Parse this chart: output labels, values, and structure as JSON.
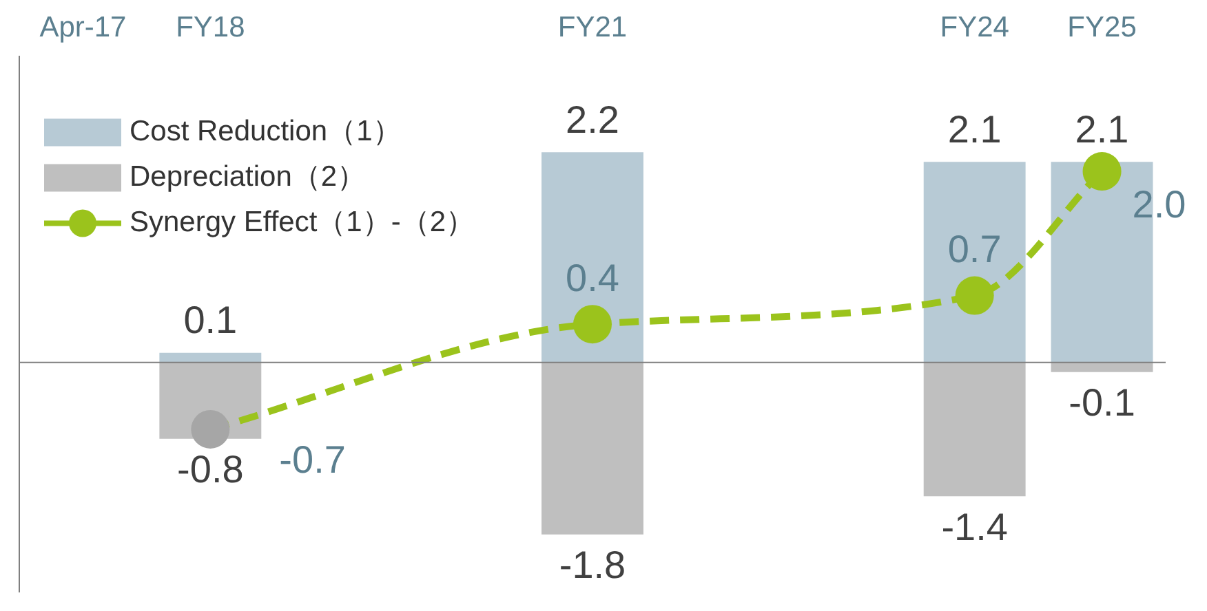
{
  "chart_data": {
    "type": "bar",
    "categories": [
      "Apr-17",
      "FY18",
      null,
      null,
      "FY21",
      null,
      null,
      "FY24",
      "FY25"
    ],
    "series": [
      {
        "name": "Cost Reduction（1）",
        "color": "#b7cad5",
        "values": [
          null,
          0.1,
          null,
          null,
          2.2,
          null,
          null,
          2.1,
          2.1
        ]
      },
      {
        "name": "Depreciation（2）",
        "color": "#bfbfbf",
        "values": [
          null,
          -0.8,
          null,
          null,
          -1.8,
          null,
          null,
          -1.4,
          -0.1
        ]
      },
      {
        "name": "Synergy Effect（1）-（2）",
        "type": "line",
        "color": "#9bc31c",
        "colors": [
          null,
          "#a6a6a6",
          null,
          null,
          "#9bc31c",
          null,
          null,
          "#9bc31c",
          "#9bc31c"
        ],
        "values": [
          null,
          -0.7,
          null,
          null,
          0.4,
          null,
          null,
          0.7,
          2.0
        ],
        "value_labels": [
          null,
          "-0.7",
          null,
          null,
          "0.4",
          null,
          null,
          "0.7",
          "2.0"
        ]
      }
    ],
    "stacked": true,
    "ylim": [
      -2.4,
      3.2
    ],
    "tick_labels": "x",
    "grid": false,
    "legend": "top left",
    "marker": "circle",
    "line_style": "dashed",
    "data_labels": true
  }
}
